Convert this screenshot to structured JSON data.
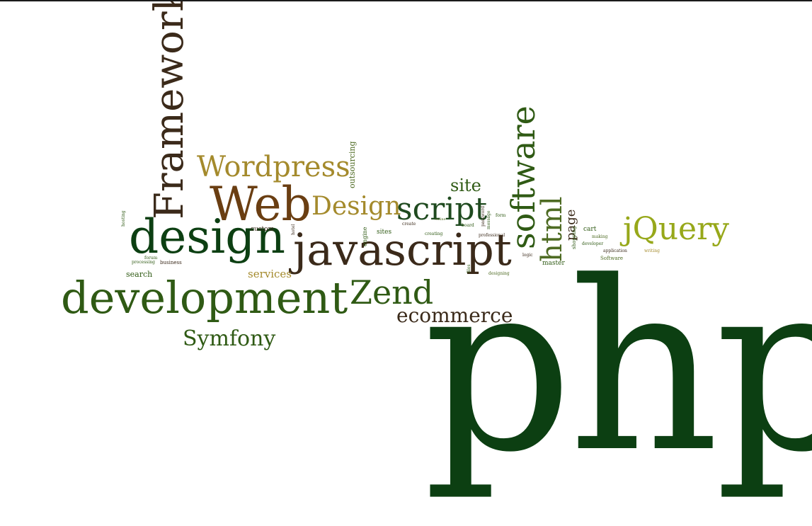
{
  "colors": {
    "dark_green": "#0c3f12",
    "forest": "#2f5a14",
    "olive_gold": "#a48a2c",
    "brown": "#4a2e12",
    "dark_brown": "#3b2a1a",
    "yellow_green": "#97a81a",
    "moss": "#4e6b23"
  },
  "words": {
    "php": "php",
    "development": "development",
    "javascript": "javascript",
    "design": "design",
    "web": "Web",
    "framework": "Framework",
    "software": "software",
    "wordpress": "Wordpress",
    "jquery": "jQuery",
    "zend": "Zend",
    "script": "script",
    "html": "html",
    "design_cap": "Design",
    "symfony": "Symfony",
    "ecommerce": "ecommerce",
    "site": "site",
    "services": "services",
    "page": "page",
    "outsourcing": "outsourcing",
    "search": "search",
    "custom": "custom",
    "sites": "sites",
    "master": "master",
    "cart": "cart",
    "software_cap": "Software",
    "engine": "engine",
    "business": "business",
    "forum": "forum",
    "processing": "processing",
    "professional": "professional",
    "designing": "designing",
    "shopping": "shopping",
    "board": "board",
    "making": "making",
    "logic": "logic",
    "developer": "developer",
    "application": "application",
    "form": "form",
    "password": "password",
    "message": "message",
    "writing": "writing",
    "creating": "creating",
    "create": "create",
    "hosting": "hosting",
    "hotel": "hotel",
    "online": "online",
    "files": "files",
    "commerce": "ecommerce"
  }
}
